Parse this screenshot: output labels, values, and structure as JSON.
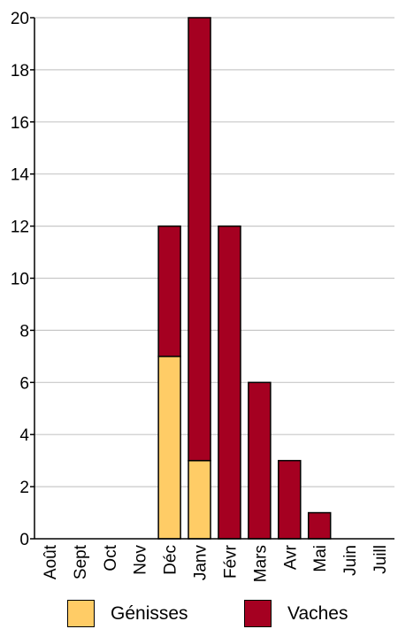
{
  "chart_data": {
    "type": "bar",
    "stacked": true,
    "categories": [
      "Août",
      "Sept",
      "Oct",
      "Nov",
      "Déc",
      "Janv",
      "Févr",
      "Mars",
      "Avr",
      "Mai",
      "Juin",
      "Juill"
    ],
    "series": [
      {
        "name": "Génisses",
        "color": "#FFCC66",
        "values": [
          0,
          0,
          0,
          0,
          7,
          3,
          0,
          0,
          0,
          0,
          0,
          0
        ]
      },
      {
        "name": "Vaches",
        "color": "#A50021",
        "values": [
          0,
          0,
          0,
          0,
          5,
          17,
          12,
          6,
          3,
          1,
          0,
          0
        ]
      }
    ],
    "y_ticks": [
      "0",
      "2",
      "4",
      "6",
      "8",
      "10",
      "12",
      "14",
      "16",
      "18",
      "20"
    ],
    "ylim": [
      0,
      20
    ],
    "grid": true,
    "legend_position": "bottom"
  }
}
